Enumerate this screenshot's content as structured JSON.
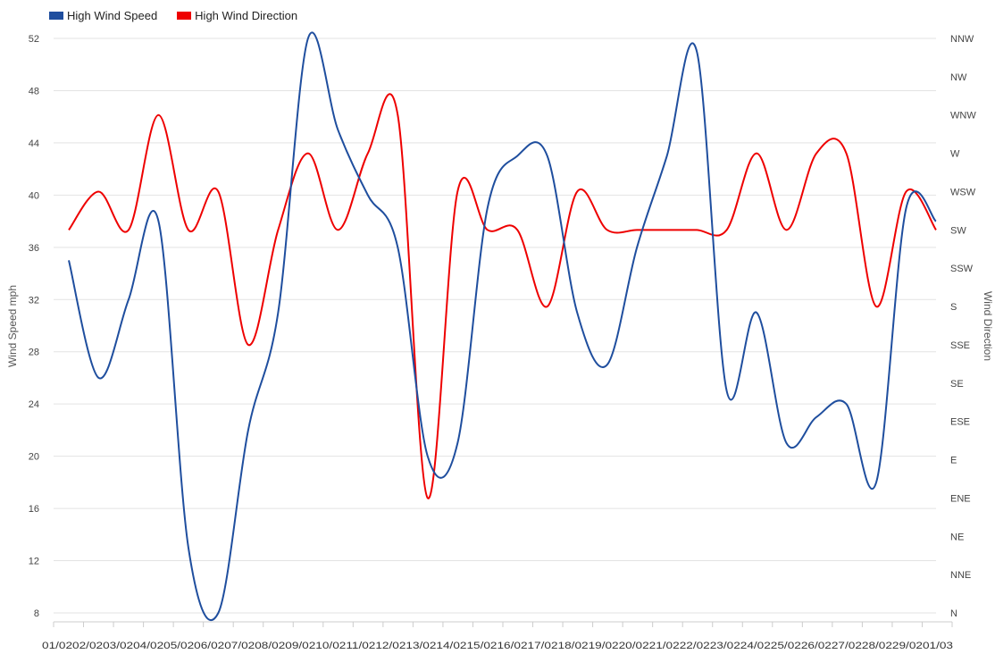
{
  "chart_data": {
    "type": "line",
    "categories": [
      "01/02",
      "02/03",
      "03/04",
      "04/05",
      "05/06",
      "06/07",
      "07/08",
      "08/09",
      "09/10",
      "10/11",
      "11/12",
      "12/13",
      "13/14",
      "14/15",
      "15/16",
      "16/17",
      "17/18",
      "18/19",
      "19/20",
      "20/21",
      "21/22",
      "22/23",
      "23/24",
      "24/25",
      "25/26",
      "26/27",
      "27/28",
      "28/29",
      "29/01",
      "01/03"
    ],
    "x_tick_text": "01/0202/0203/0204/0205/0206/0207/0208/0209/0210/0211/0212/0213/0214/0215/0216/0217/0218/0219/0220/0221/0222/0223/0224/0225/0226/0227/0228/0229/0201/03",
    "series": [
      {
        "name": "High Wind Speed",
        "color": "#1f4e9e",
        "axis": "left",
        "values": [
          35,
          26,
          32,
          38,
          13,
          8,
          22,
          31,
          52,
          45,
          40,
          36,
          20,
          21,
          39,
          43,
          43,
          31,
          27,
          36,
          43,
          51,
          25,
          31,
          21,
          23,
          24,
          18,
          39,
          38
        ]
      },
      {
        "name": "High Wind Direction",
        "color": "#ee0000",
        "axis": "right",
        "values": [
          "SW",
          "WSW",
          "SW",
          "WNW",
          "SW",
          "WSW",
          "SSE",
          "SW",
          "W",
          "SW",
          "W",
          "WNW",
          "ENE",
          "WSW",
          "SW",
          "SW",
          "S",
          "WSW",
          "SW",
          "SW",
          "SW",
          "SW",
          "SW",
          "W",
          "SW",
          "W",
          "W",
          "S",
          "WSW",
          "SW"
        ]
      }
    ],
    "y_left": {
      "label": "Wind Speed mph",
      "ylim": [
        8,
        52
      ],
      "ticks": [
        "52",
        "48",
        "44",
        "40",
        "36",
        "32",
        "28",
        "24",
        "20",
        "16",
        "12",
        "8"
      ]
    },
    "y_right": {
      "label": "Wind Direction",
      "ticks": [
        "NNW",
        "NW",
        "WNW",
        "W",
        "WSW",
        "SW",
        "SSW",
        "S",
        "SSE",
        "SE",
        "ESE",
        "E",
        "ENE",
        "NE",
        "NNE",
        "N"
      ]
    },
    "grid": true,
    "legend": "top-left"
  }
}
